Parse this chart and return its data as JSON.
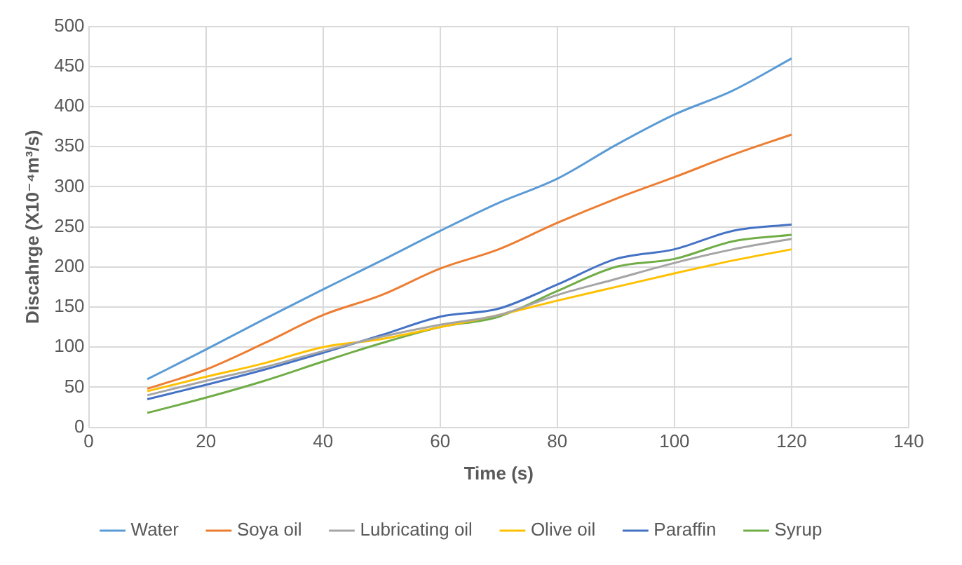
{
  "chart_data": {
    "type": "line",
    "xlabel": "Time (s)",
    "ylabel": "Discahrge (X10⁻⁴m³/s)",
    "x": [
      10,
      20,
      30,
      40,
      50,
      60,
      70,
      80,
      90,
      100,
      110,
      120
    ],
    "xlim": [
      0,
      140
    ],
    "xticks": [
      0,
      20,
      40,
      60,
      80,
      100,
      120,
      140
    ],
    "ylim": [
      0,
      500
    ],
    "yticks": [
      0,
      50,
      100,
      150,
      200,
      250,
      300,
      350,
      400,
      450,
      500
    ],
    "grid": true,
    "legend": "bottom",
    "marker": "none",
    "line_style": "solid",
    "series": [
      {
        "name": "Water",
        "color": "#5b9bd5",
        "values": [
          60,
          97,
          135,
          172,
          208,
          245,
          280,
          310,
          352,
          390,
          420,
          460
        ]
      },
      {
        "name": "Soya oil",
        "color": "#ed7d31",
        "values": [
          48,
          72,
          105,
          140,
          165,
          198,
          222,
          255,
          285,
          312,
          340,
          365
        ]
      },
      {
        "name": "Lubricating oil",
        "color": "#a5a5a5",
        "values": [
          40,
          58,
          75,
          95,
          113,
          128,
          140,
          165,
          185,
          205,
          222,
          235
        ]
      },
      {
        "name": "Olive oil",
        "color": "#ffc000",
        "values": [
          45,
          63,
          80,
          100,
          110,
          125,
          140,
          158,
          175,
          192,
          208,
          222
        ]
      },
      {
        "name": "Paraffin",
        "color": "#4472c4",
        "values": [
          35,
          53,
          72,
          93,
          115,
          138,
          148,
          178,
          210,
          222,
          245,
          253
        ]
      },
      {
        "name": "Syrup",
        "color": "#70ad47",
        "values": [
          18,
          37,
          58,
          82,
          105,
          125,
          138,
          170,
          200,
          210,
          232,
          240
        ]
      }
    ]
  }
}
